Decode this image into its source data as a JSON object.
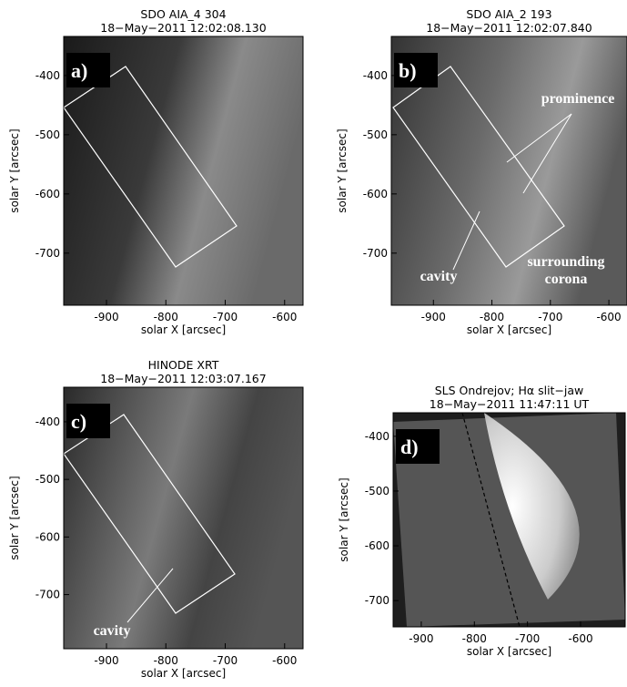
{
  "chart_data": [
    {
      "type": "image",
      "title": "SDO AIA_4 304",
      "subtitle": "18−May−2011 12:02:08.130",
      "panel_label": "a)",
      "x_label": "solar X [arcsec]",
      "y_label": "solar Y [arcsec]",
      "xlim": [
        -972,
        -569
      ],
      "ylim": [
        -788,
        -334
      ],
      "xticks": [
        -900,
        -800,
        -700,
        -600
      ],
      "yticks": [
        -400,
        -500,
        -600,
        -700
      ],
      "annotations": []
    },
    {
      "type": "image",
      "title": "SDO AIA_2 193",
      "subtitle": "18−May−2011 12:02:07.840",
      "panel_label": "b)",
      "x_label": "solar X [arcsec]",
      "y_label": "solar Y [arcsec]",
      "xlim": [
        -972,
        -569
      ],
      "ylim": [
        -788,
        -334
      ],
      "xticks": [
        -900,
        -800,
        -700,
        -600
      ],
      "yticks": [
        -400,
        -500,
        -600,
        -700
      ],
      "annotations": [
        "prominence",
        "cavity",
        "surrounding",
        "corona"
      ]
    },
    {
      "type": "image",
      "title": "HINODE XRT",
      "subtitle": "18−May−2011 12:03:07.167",
      "panel_label": "c)",
      "x_label": "solar X [arcsec]",
      "y_label": "solar Y [arcsec]",
      "xlim": [
        -972,
        -569
      ],
      "ylim": [
        -794,
        -340
      ],
      "xticks": [
        -900,
        -800,
        -700,
        -600
      ],
      "yticks": [
        -400,
        -500,
        -600,
        -700
      ],
      "annotations": [
        "cavity"
      ]
    },
    {
      "type": "image",
      "title": "SLS Ondrejov; Hα slit−jaw",
      "subtitle": "18−May−2011 11:47:11 UT",
      "panel_label": "d)",
      "x_label": "solar X [arcsec]",
      "y_label": "solar Y [arcsec]",
      "xlim": [
        -953,
        -516
      ],
      "ylim": [
        -748,
        -357
      ],
      "xticks": [
        -900,
        -800,
        -700,
        -600
      ],
      "yticks": [
        -400,
        -500,
        -600,
        -700
      ],
      "annotations": []
    }
  ]
}
